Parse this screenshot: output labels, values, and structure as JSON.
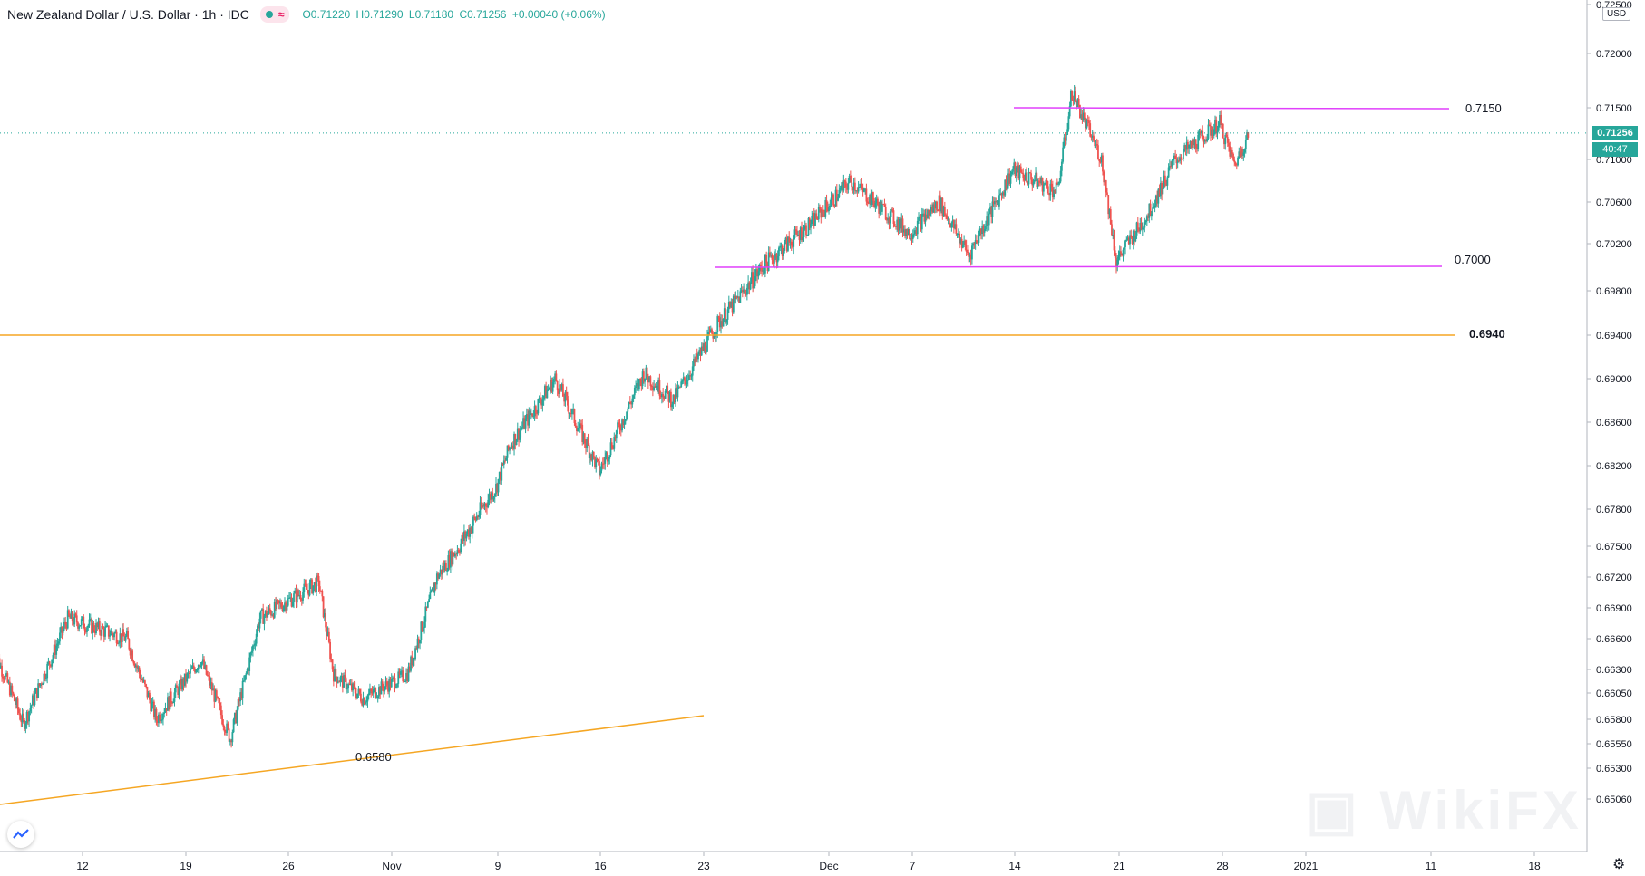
{
  "header": {
    "symbol": "New Zealand Dollar / U.S. Dollar · 1h · IDC",
    "open": "O0.71220",
    "high": "H0.71290",
    "low": "L0.71180",
    "close": "C0.71256",
    "change": "+0.00040 (+0.06%)"
  },
  "currency": "USD",
  "current_price_label": "0.71256",
  "countdown_label": "40:47",
  "levels": {
    "upper": "0.7150",
    "mid": "0.7000",
    "support": "0.6940",
    "trend": "0.6580"
  },
  "colors": {
    "up": "#26a69a",
    "down": "#ef5350",
    "magenta": "#e040fb",
    "orange": "#f5a623",
    "grid_text": "#131722"
  },
  "chart_data": {
    "type": "candlestick",
    "interval": "1h",
    "y_axis_ticks": [
      "0.72500",
      "0.72000",
      "0.71500",
      "0.71000",
      "0.70600",
      "0.70200",
      "0.69800",
      "0.69400",
      "0.69000",
      "0.68600",
      "0.68200",
      "0.67800",
      "0.67500",
      "0.67200",
      "0.66900",
      "0.66600",
      "0.66300",
      "0.66050",
      "0.65800",
      "0.65550",
      "0.65300",
      "0.65060"
    ],
    "x_axis_ticks": [
      "12",
      "19",
      "26",
      "Nov",
      "9",
      "16",
      "23",
      "Dec",
      "7",
      "14",
      "21",
      "28",
      "2021",
      "11",
      "18"
    ],
    "ylim": [
      0.6495,
      0.7255
    ],
    "path_points": [
      {
        "t": "Oct 6",
        "price": 0.665
      },
      {
        "t": "Oct 8",
        "price": 0.6575
      },
      {
        "t": "Oct 11",
        "price": 0.668
      },
      {
        "t": "Oct 15",
        "price": 0.666
      },
      {
        "t": "Oct 17",
        "price": 0.658
      },
      {
        "t": "Oct 20",
        "price": 0.664
      },
      {
        "t": "Oct 22",
        "price": 0.656
      },
      {
        "t": "Oct 24",
        "price": 0.668
      },
      {
        "t": "Oct 28",
        "price": 0.6715
      },
      {
        "t": "Oct 29",
        "price": 0.6625
      },
      {
        "t": "Oct 31",
        "price": 0.66
      },
      {
        "t": "Nov 3",
        "price": 0.6625
      },
      {
        "t": "Nov 5",
        "price": 0.672
      },
      {
        "t": "Nov 9",
        "price": 0.68
      },
      {
        "t": "Nov 10",
        "price": 0.684
      },
      {
        "t": "Nov 13",
        "price": 0.69
      },
      {
        "t": "Nov 16",
        "price": 0.6815
      },
      {
        "t": "Nov 19",
        "price": 0.6905
      },
      {
        "t": "Nov 21",
        "price": 0.688
      },
      {
        "t": "Nov 24",
        "price": 0.695
      },
      {
        "t": "Nov 27",
        "price": 0.7
      },
      {
        "t": "Nov 30",
        "price": 0.7035
      },
      {
        "t": "Dec 3",
        "price": 0.708
      },
      {
        "t": "Dec 7",
        "price": 0.703
      },
      {
        "t": "Dec 9",
        "price": 0.706
      },
      {
        "t": "Dec 11",
        "price": 0.701
      },
      {
        "t": "Dec 14",
        "price": 0.709
      },
      {
        "t": "Dec 17",
        "price": 0.707
      },
      {
        "t": "Dec 18",
        "price": 0.7165
      },
      {
        "t": "Dec 20",
        "price": 0.71
      },
      {
        "t": "Dec 21",
        "price": 0.7005
      },
      {
        "t": "Dec 23",
        "price": 0.7045
      },
      {
        "t": "Dec 25",
        "price": 0.71
      },
      {
        "t": "Dec 28",
        "price": 0.7135
      },
      {
        "t": "Dec 29",
        "price": 0.7095
      },
      {
        "t": "Dec 30",
        "price": 0.71256
      }
    ],
    "annotations": [
      {
        "text": "0.7150",
        "type": "horizontal",
        "price": 0.715,
        "color": "#e040fb"
      },
      {
        "text": "0.7000",
        "type": "horizontal",
        "price": 0.7,
        "color": "#e040fb"
      },
      {
        "text": "0.6940",
        "type": "horizontal",
        "price": 0.694,
        "color": "#f5a623"
      },
      {
        "text": "0.6580",
        "type": "trendline",
        "color": "#f5a623"
      }
    ]
  }
}
